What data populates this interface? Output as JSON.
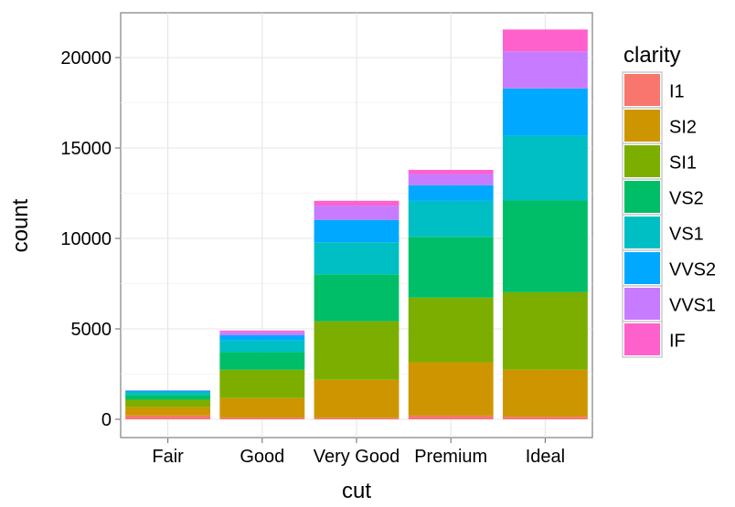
{
  "chart_data": {
    "type": "bar",
    "stacked": true,
    "title": "",
    "xlabel": "cut",
    "ylabel": "count",
    "ylim": [
      0,
      22500
    ],
    "yticks": [
      0,
      5000,
      10000,
      15000,
      20000
    ],
    "grid": true,
    "legend_title": "clarity",
    "legend_placement": "right",
    "categories": [
      "Fair",
      "Good",
      "Very Good",
      "Premium",
      "Ideal"
    ],
    "series": [
      {
        "name": "I1",
        "color": "#F8766D",
        "values": [
          210,
          96,
          84,
          205,
          146
        ]
      },
      {
        "name": "SI2",
        "color": "#CD9600",
        "values": [
          466,
          1081,
          2100,
          2949,
          2598
        ]
      },
      {
        "name": "SI1",
        "color": "#7CAE00",
        "values": [
          408,
          1560,
          3240,
          3575,
          4282
        ]
      },
      {
        "name": "VS2",
        "color": "#00BE67",
        "values": [
          261,
          978,
          2591,
          3357,
          5071
        ]
      },
      {
        "name": "VS1",
        "color": "#00BFC4",
        "values": [
          170,
          648,
          1775,
          1989,
          3589
        ]
      },
      {
        "name": "VVS2",
        "color": "#00A9FF",
        "values": [
          69,
          286,
          1235,
          870,
          2606
        ]
      },
      {
        "name": "VVS1",
        "color": "#C77CFF",
        "values": [
          17,
          186,
          789,
          616,
          2047
        ]
      },
      {
        "name": "IF",
        "color": "#FF61CC",
        "values": [
          9,
          71,
          268,
          230,
          1212
        ]
      }
    ]
  }
}
